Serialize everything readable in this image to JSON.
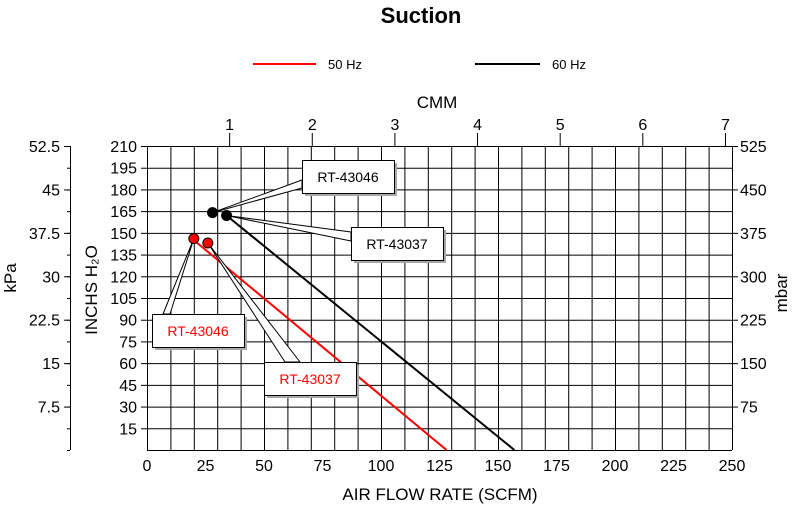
{
  "chart_data": {
    "type": "line",
    "title": "Suction",
    "xlabel": "AIR FLOW RATE (SCFM)",
    "x2label": "CMM",
    "ylabel": "INCHS H₂O",
    "y2label": "kPa",
    "y3label": "mbar",
    "xlim": [
      0,
      250
    ],
    "ylim": [
      0,
      210
    ],
    "x_ticks": [
      "0",
      "25",
      "50",
      "75",
      "100",
      "125",
      "150",
      "175",
      "200",
      "225",
      "250"
    ],
    "x2_ticks": [
      "1",
      "2",
      "3",
      "4",
      "5",
      "6",
      "7"
    ],
    "y_ticks": [
      "15",
      "30",
      "45",
      "60",
      "75",
      "90",
      "105",
      "120",
      "135",
      "150",
      "165",
      "180",
      "195",
      "210"
    ],
    "kpa_ticks": [
      "7.5",
      "15",
      "22.5",
      "30",
      "37.5",
      "45",
      "52.5"
    ],
    "mbar_ticks": [
      "75",
      "150",
      "225",
      "300",
      "375",
      "450",
      "525"
    ],
    "grid": true,
    "legend_position": "top",
    "series": [
      {
        "name": "50 Hz",
        "color": "#ff0000",
        "x": [
          20,
          128
        ],
        "y": [
          145,
          0
        ]
      },
      {
        "name": "60 Hz",
        "color": "#000000",
        "x": [
          34,
          157
        ],
        "y": [
          162,
          0
        ]
      }
    ],
    "markers": [
      {
        "label": "RT-43046",
        "series": "60 Hz",
        "color": "#000000",
        "x": 28,
        "y": 164
      },
      {
        "label": "RT-43037",
        "series": "60 Hz",
        "color": "#000000",
        "x": 34,
        "y": 162
      },
      {
        "label": "RT-43046",
        "series": "50 Hz",
        "color": "#ff0000",
        "x": 20,
        "y": 146
      },
      {
        "label": "RT-43037",
        "series": "50 Hz",
        "color": "#ff0000",
        "x": 26,
        "y": 143
      }
    ]
  }
}
